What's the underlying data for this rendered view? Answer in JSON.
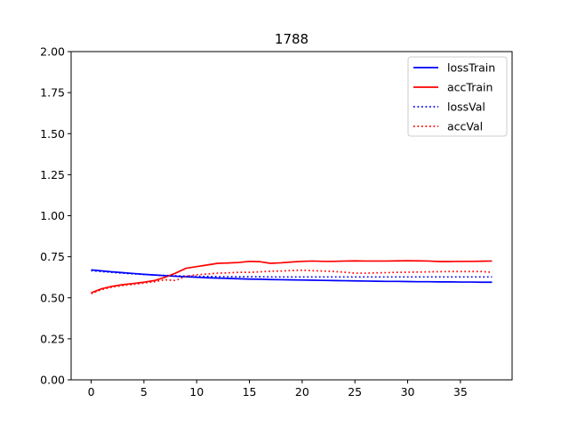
{
  "chart_data": {
    "type": "line",
    "title": "1788",
    "xlabel": "",
    "ylabel": "",
    "xlim": [
      -1.9,
      39.9
    ],
    "ylim": [
      0,
      2
    ],
    "xticks": [
      0,
      5,
      10,
      15,
      20,
      25,
      30,
      35
    ],
    "xtick_labels": [
      "0",
      "5",
      "10",
      "15",
      "20",
      "25",
      "30",
      "35"
    ],
    "yticks": [
      0,
      0.25,
      0.5,
      0.75,
      1.0,
      1.25,
      1.5,
      1.75,
      2.0
    ],
    "ytick_labels": [
      "0.00",
      "0.25",
      "0.50",
      "0.75",
      "1.00",
      "1.25",
      "1.50",
      "1.75",
      "2.00"
    ],
    "grid": false,
    "legend_position": "top-right",
    "x": [
      0,
      1,
      2,
      3,
      4,
      5,
      6,
      7,
      8,
      9,
      10,
      11,
      12,
      13,
      14,
      15,
      16,
      17,
      18,
      19,
      20,
      21,
      22,
      23,
      24,
      25,
      26,
      27,
      28,
      29,
      30,
      31,
      32,
      33,
      34,
      35,
      36,
      37,
      38
    ],
    "series": [
      {
        "name": "lossTrain",
        "color": "#0000ff",
        "style": "solid",
        "values": [
          0.67,
          0.664,
          0.658,
          0.653,
          0.648,
          0.643,
          0.639,
          0.635,
          0.631,
          0.628,
          0.625,
          0.622,
          0.62,
          0.618,
          0.616,
          0.614,
          0.613,
          0.611,
          0.61,
          0.609,
          0.608,
          0.607,
          0.606,
          0.605,
          0.604,
          0.603,
          0.602,
          0.601,
          0.6,
          0.6,
          0.599,
          0.598,
          0.598,
          0.597,
          0.597,
          0.596,
          0.596,
          0.595,
          0.595
        ]
      },
      {
        "name": "accTrain",
        "color": "#ff0000",
        "style": "solid",
        "values": [
          0.53,
          0.555,
          0.57,
          0.58,
          0.587,
          0.595,
          0.605,
          0.625,
          0.65,
          0.68,
          0.69,
          0.7,
          0.71,
          0.712,
          0.715,
          0.722,
          0.72,
          0.71,
          0.713,
          0.718,
          0.722,
          0.724,
          0.722,
          0.722,
          0.724,
          0.725,
          0.724,
          0.724,
          0.724,
          0.725,
          0.726,
          0.725,
          0.724,
          0.721,
          0.721,
          0.722,
          0.722,
          0.723,
          0.724
        ]
      },
      {
        "name": "lossVal",
        "color": "#0000ff",
        "style": "dotted",
        "values": [
          0.665,
          0.66,
          0.655,
          0.65,
          0.646,
          0.642,
          0.639,
          0.636,
          0.634,
          0.632,
          0.631,
          0.63,
          0.629,
          0.629,
          0.628,
          0.628,
          0.628,
          0.627,
          0.627,
          0.627,
          0.627,
          0.627,
          0.627,
          0.627,
          0.627,
          0.627,
          0.627,
          0.627,
          0.627,
          0.627,
          0.627,
          0.627,
          0.627,
          0.627,
          0.627,
          0.627,
          0.627,
          0.627,
          0.627
        ]
      },
      {
        "name": "accVal",
        "color": "#ff0000",
        "style": "dotted",
        "values": [
          0.525,
          0.55,
          0.565,
          0.575,
          0.582,
          0.59,
          0.598,
          0.61,
          0.605,
          0.632,
          0.64,
          0.645,
          0.65,
          0.652,
          0.655,
          0.655,
          0.658,
          0.662,
          0.663,
          0.666,
          0.668,
          0.665,
          0.663,
          0.66,
          0.656,
          0.65,
          0.65,
          0.652,
          0.653,
          0.655,
          0.656,
          0.657,
          0.658,
          0.659,
          0.66,
          0.66,
          0.66,
          0.66,
          0.655
        ]
      }
    ]
  }
}
